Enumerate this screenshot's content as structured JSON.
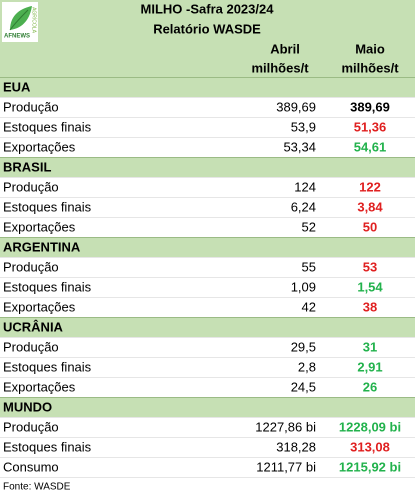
{
  "logo": {
    "name": "AFNEWS",
    "tag": "AGRÍCOLA"
  },
  "header": {
    "title": "MILHO -Safra 2023/24",
    "subtitle": "Relatório WASDE",
    "columns": [
      {
        "name": "Abril",
        "unit": "milhões/t"
      },
      {
        "name": "Maio",
        "unit": "milhões/t"
      }
    ]
  },
  "sections": [
    {
      "name": "EUA",
      "rows": [
        {
          "label": "Produção",
          "abril": "389,69",
          "maio": "389,69",
          "color": "#000000"
        },
        {
          "label": "Estoques finais",
          "abril": "53,9",
          "maio": "51,36",
          "color": "#e02020"
        },
        {
          "label": "Exportações",
          "abril": "53,34",
          "maio": "54,61",
          "color": "#22b24c"
        }
      ]
    },
    {
      "name": "BRASIL",
      "rows": [
        {
          "label": "Produção",
          "abril": "124",
          "maio": "122",
          "color": "#e02020"
        },
        {
          "label": "Estoques finais",
          "abril": "6,24",
          "maio": "3,84",
          "color": "#e02020"
        },
        {
          "label": "Exportações",
          "abril": "52",
          "maio": "50",
          "color": "#e02020"
        }
      ]
    },
    {
      "name": "ARGENTINA",
      "rows": [
        {
          "label": "Produção",
          "abril": "55",
          "maio": "53",
          "color": "#e02020"
        },
        {
          "label": "Estoques finais",
          "abril": "1,09",
          "maio": "1,54",
          "color": "#22b24c"
        },
        {
          "label": "Exportações",
          "abril": "42",
          "maio": "38",
          "color": "#e02020"
        }
      ]
    },
    {
      "name": "UCRÂNIA",
      "rows": [
        {
          "label": "Produção",
          "abril": "29,5",
          "maio": "31",
          "color": "#22b24c"
        },
        {
          "label": "Estoques finais",
          "abril": "2,8",
          "maio": "2,91",
          "color": "#22b24c"
        },
        {
          "label": "Exportações",
          "abril": "24,5",
          "maio": "26",
          "color": "#22b24c"
        }
      ]
    },
    {
      "name": "MUNDO",
      "rows": [
        {
          "label": "Produção",
          "abril": "1227,86 bi",
          "maio": "1228,09 bi",
          "color": "#22b24c"
        },
        {
          "label": "Estoques finais",
          "abril": "318,28",
          "maio": "313,08",
          "color": "#e02020"
        },
        {
          "label": "Consumo",
          "abril": "1211,77 bi",
          "maio": "1215,92 bi",
          "color": "#22b24c"
        }
      ]
    }
  ],
  "footer": {
    "source": "Fonte: WASDE"
  }
}
